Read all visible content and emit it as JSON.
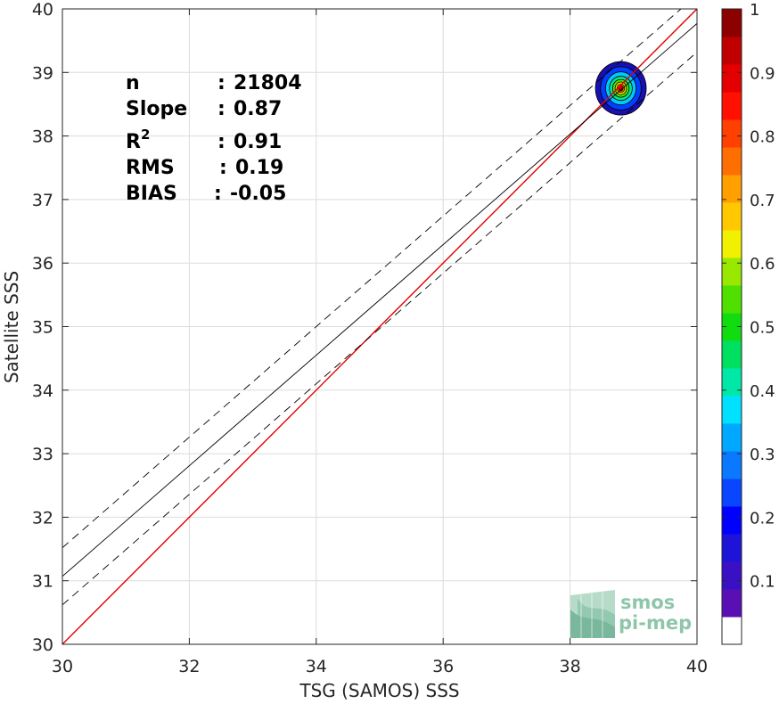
{
  "chart_data": {
    "type": "heatmap",
    "xlabel": "TSG (SAMOS) SSS",
    "ylabel": "Satellite SSS",
    "xlim": [
      30,
      40
    ],
    "ylim": [
      30,
      40
    ],
    "xticks": [
      30,
      32,
      34,
      36,
      38,
      40
    ],
    "yticks": [
      30,
      31,
      32,
      33,
      34,
      35,
      36,
      37,
      38,
      39,
      40
    ],
    "grid": true,
    "stats": [
      {
        "label": "n",
        "sep": ":",
        "value": "21804"
      },
      {
        "label": "Slope",
        "sep": ":",
        "value": "0.87"
      },
      {
        "label": "R",
        "sup": "2",
        "sep": ":",
        "value": "0.91"
      },
      {
        "label": "RMS",
        "sep": ":",
        "value": "0.19"
      },
      {
        "label": "BIAS",
        "sep": ":",
        "value": "-0.05"
      }
    ],
    "identity_line": {
      "color": "#e00000",
      "from": [
        30,
        30
      ],
      "to": [
        40,
        40
      ]
    },
    "fit_line": {
      "color": "#000000",
      "from": [
        30,
        31.07
      ],
      "to": [
        40,
        39.77
      ]
    },
    "fit_bounds": {
      "offset": 0.45,
      "style": "dashed"
    },
    "density_peak": {
      "x": 38.8,
      "y": 38.75
    },
    "density_levels": [
      {
        "level": 0.05,
        "rx": 0.4,
        "ry": 0.42,
        "color": "#1a0fb0"
      },
      {
        "level": 0.2,
        "rx": 0.32,
        "ry": 0.34,
        "color": "#0040ff"
      },
      {
        "level": 0.35,
        "rx": 0.24,
        "ry": 0.26,
        "color": "#00c8ff"
      },
      {
        "level": 0.45,
        "rx": 0.18,
        "ry": 0.19,
        "color": "#00e890"
      },
      {
        "level": 0.55,
        "rx": 0.13,
        "ry": 0.14,
        "color": "#5ae000"
      },
      {
        "level": 0.65,
        "rx": 0.09,
        "ry": 0.1,
        "color": "#e8e000"
      },
      {
        "level": 0.8,
        "rx": 0.06,
        "ry": 0.065,
        "color": "#ff7a00"
      },
      {
        "level": 0.95,
        "rx": 0.035,
        "ry": 0.04,
        "color": "#e00000"
      }
    ],
    "colorbar": {
      "range": [
        0,
        1
      ],
      "ticks": [
        "0.1",
        "0.2",
        "0.3",
        "0.4",
        "0.5",
        "0.6",
        "0.7",
        "0.8",
        "0.9",
        "1"
      ],
      "colors": [
        "#ffffff",
        "#5a0fb4",
        "#3a10c4",
        "#1e14d8",
        "#0000ff",
        "#0a46ff",
        "#0a78ff",
        "#00a8ff",
        "#00e0ff",
        "#00e8a8",
        "#00e060",
        "#10dc10",
        "#50e000",
        "#98e800",
        "#f0f000",
        "#ffc800",
        "#ffa000",
        "#ff6e00",
        "#ff4000",
        "#ff1000",
        "#e40000",
        "#c00000",
        "#8c0000"
      ]
    }
  },
  "logo": {
    "line1": "smos",
    "line2": "pi-mep"
  }
}
